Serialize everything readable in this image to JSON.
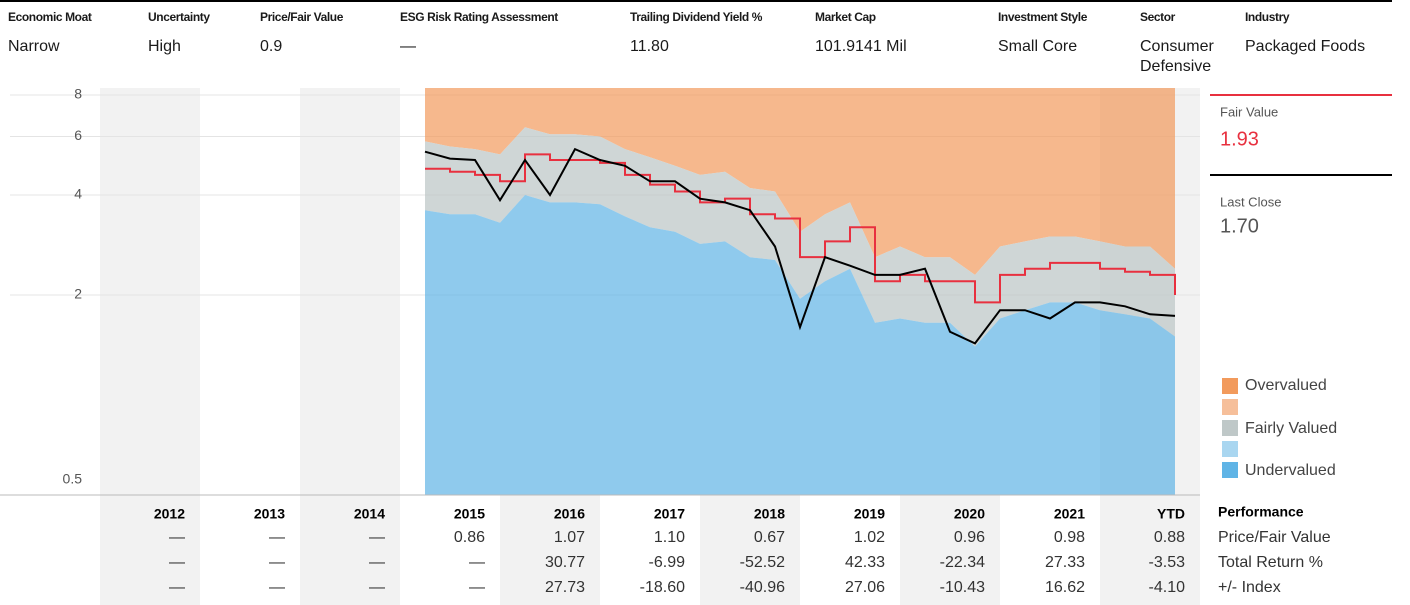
{
  "header": {
    "columns": [
      {
        "label": "Economic Moat",
        "value": "Narrow"
      },
      {
        "label": "Uncertainty",
        "value": "High"
      },
      {
        "label": "Price/Fair Value",
        "value": "0.9"
      },
      {
        "label": "ESG Risk Rating Assessment",
        "value": "—"
      },
      {
        "label": "Trailing Dividend Yield %",
        "value": "11.80"
      },
      {
        "label": "Market Cap",
        "value": "101.9141 Mil"
      },
      {
        "label": "Investment Style",
        "value": "Small Core"
      },
      {
        "label": "Sector",
        "value": "Consumer Defensive"
      },
      {
        "label": "Industry",
        "value": "Packaged Foods"
      }
    ]
  },
  "chart_data": {
    "type": "line",
    "yscale": "log",
    "x": [
      2015.25,
      2015.5,
      2015.75,
      2016,
      2016.25,
      2016.5,
      2016.75,
      2017,
      2017.25,
      2017.5,
      2017.75,
      2018,
      2018.25,
      2018.5,
      2018.75,
      2019,
      2019.25,
      2019.5,
      2019.75,
      2020,
      2020.25,
      2020.5,
      2020.75,
      2021,
      2021.25,
      2021.5,
      2021.75,
      2022,
      2022.25,
      2022.5,
      2022.75
    ],
    "xlim": [
      2012,
      2023
    ],
    "ylim": [
      0.5,
      8.4
    ],
    "yticks": [
      0.5,
      2,
      4,
      6,
      8
    ],
    "series": [
      {
        "name": "Fair Value",
        "color": "#e8303f",
        "current_label": "1.93",
        "values": [
          4.8,
          4.7,
          4.6,
          4.4,
          5.3,
          5.1,
          5.1,
          5.0,
          4.6,
          4.3,
          4.1,
          3.8,
          3.9,
          3.5,
          3.4,
          2.6,
          2.9,
          3.2,
          2.2,
          2.3,
          2.2,
          2.2,
          1.9,
          2.3,
          2.4,
          2.5,
          2.5,
          2.4,
          2.35,
          2.3,
          2.0
        ]
      },
      {
        "name": "Last Close",
        "color": "#000000",
        "current_label": "1.70",
        "values": [
          5.4,
          5.15,
          5.1,
          3.86,
          5.1,
          4.0,
          5.5,
          5.1,
          4.9,
          4.4,
          4.4,
          3.9,
          3.8,
          3.6,
          2.8,
          1.6,
          2.6,
          2.45,
          2.3,
          2.3,
          2.4,
          1.55,
          1.43,
          1.8,
          1.8,
          1.7,
          1.9,
          1.9,
          1.85,
          1.75,
          1.73
        ]
      }
    ],
    "bands": [
      {
        "name": "Overvalued",
        "color": "#f29a5c",
        "values": [
          5.8,
          5.6,
          5.5,
          5.3,
          6.4,
          6.1,
          6.1,
          6.0,
          5.5,
          5.2,
          4.9,
          4.6,
          4.7,
          4.2,
          4.1,
          3.1,
          3.5,
          3.8,
          2.6,
          2.8,
          2.6,
          2.6,
          2.3,
          2.8,
          2.9,
          3.0,
          3.0,
          2.9,
          2.8,
          2.8,
          2.4
        ]
      },
      {
        "name": "Fairly Valued",
        "color": "#bfc8c8"
      },
      {
        "name": "Undervalued",
        "color": "#5fb4e6",
        "values": [
          3.6,
          3.5,
          3.5,
          3.3,
          4.0,
          3.8,
          3.8,
          3.75,
          3.45,
          3.2,
          3.1,
          2.85,
          2.9,
          2.6,
          2.55,
          1.95,
          2.2,
          2.4,
          1.65,
          1.7,
          1.65,
          1.65,
          1.4,
          1.7,
          1.8,
          1.9,
          1.9,
          1.8,
          1.75,
          1.7,
          1.5
        ]
      }
    ]
  },
  "performance": {
    "title": "Performance",
    "years": [
      "2012",
      "2013",
      "2014",
      "2015",
      "2016",
      "2017",
      "2018",
      "2019",
      "2020",
      "2021",
      "YTD"
    ],
    "rows": [
      {
        "label": "Price/Fair Value",
        "cells": [
          "—",
          "—",
          "—",
          "0.86",
          "1.07",
          "1.10",
          "0.67",
          "1.02",
          "0.96",
          "0.98",
          "0.88"
        ]
      },
      {
        "label": "Total Return %",
        "cells": [
          "—",
          "—",
          "—",
          "—",
          "30.77",
          "-6.99",
          "-52.52",
          "42.33",
          "-22.34",
          "27.33",
          "-3.53"
        ]
      },
      {
        "label": "+/- Index",
        "cells": [
          "—",
          "—",
          "—",
          "—",
          "27.73",
          "-18.60",
          "-40.96",
          "27.06",
          "-10.43",
          "16.62",
          "-4.10"
        ]
      }
    ]
  }
}
